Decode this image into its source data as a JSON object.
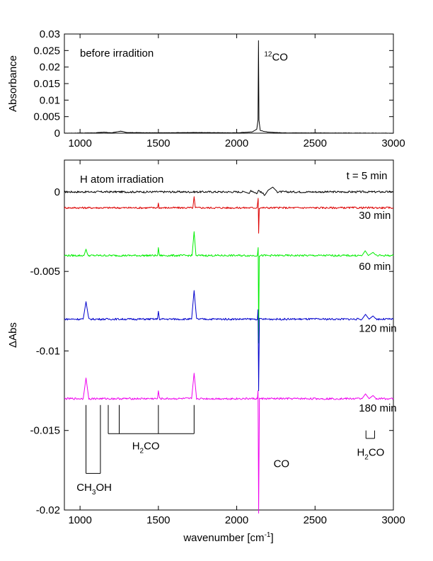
{
  "colors": {
    "axis": "#000000",
    "trace_before": "#000000",
    "trace_5": "#000000",
    "trace_30": "#dd0000",
    "trace_60": "#00ee00",
    "trace_120": "#0000cc",
    "trace_180": "#ee00ee"
  },
  "chart_data": [
    {
      "type": "line",
      "title": "",
      "xlabel": "",
      "ylabel": "Absorbance",
      "xlim": [
        900,
        3000
      ],
      "ylim": [
        0,
        0.03
      ],
      "x_ticks": [
        1000,
        1500,
        2000,
        2500,
        3000
      ],
      "x_tick_labels": [
        "1000",
        "1500",
        "2000",
        "2500",
        "3000"
      ],
      "y_ticks": [
        0,
        0.005,
        0.01,
        0.015,
        0.02,
        0.025,
        0.03
      ],
      "y_tick_labels": [
        "0",
        "0.005",
        "0.01",
        "0.015",
        "0.02",
        "0.025",
        "0.03"
      ],
      "annotation": "before irradition",
      "series": [
        {
          "baseline": 0,
          "points": [
            [
              900,
              0.0
            ],
            [
              1100,
              0.0001
            ],
            [
              1150,
              0.0003
            ],
            [
              1200,
              0.0001
            ],
            [
              1260,
              0.0006
            ],
            [
              1300,
              0.0002
            ],
            [
              1500,
              0.0001
            ],
            [
              1730,
              0.0002
            ],
            [
              2000,
              0.0001
            ],
            [
              2100,
              0.0004
            ],
            [
              2128,
              0.0012
            ],
            [
              2136,
              0.004
            ],
            [
              2139,
              0.028
            ],
            [
              2142,
              0.004
            ],
            [
              2150,
              0.0008
            ],
            [
              2200,
              0.0003
            ],
            [
              2300,
              0.0001
            ],
            [
              3000,
              0.0
            ]
          ]
        }
      ],
      "peak_label": {
        "sup": "12",
        "text": "CO",
        "x": 2139,
        "y": 0.028
      }
    },
    {
      "type": "line",
      "title": "",
      "xlabel": "wavenumber [cm",
      "xlabel_sup": "-1",
      "xlabel_suffix": "]",
      "ylabel": "ΔAbs",
      "xlim": [
        900,
        3000
      ],
      "ylim": [
        -0.02,
        0.002
      ],
      "x_ticks": [
        1000,
        1500,
        2000,
        2500,
        3000
      ],
      "x_tick_labels": [
        "1000",
        "1500",
        "2000",
        "2500",
        "3000"
      ],
      "y_ticks": [
        0,
        -0.005,
        -0.01,
        -0.015,
        -0.02
      ],
      "y_tick_labels": [
        "0",
        "-0.005",
        "-0.01",
        "-0.015",
        "-0.02"
      ],
      "annotation": "H atom irradiation",
      "series": [
        {
          "name": "t = 5 min",
          "baseline": 0.0,
          "points": [
            [
              900,
              0.0
            ],
            [
              2050,
              0.0
            ],
            [
              2080,
              -0.0001
            ],
            [
              2090,
              0.0001
            ],
            [
              2130,
              -0.0001
            ],
            [
              2139,
              0.0001
            ],
            [
              2180,
              -0.0002
            ],
            [
              2200,
              0.0001
            ],
            [
              2230,
              0.0003
            ],
            [
              2260,
              0.0
            ],
            [
              3000,
              0.0
            ]
          ]
        },
        {
          "name": "30 min",
          "baseline": -0.001,
          "points": [
            [
              900,
              -0.001
            ],
            [
              1495,
              -0.001
            ],
            [
              1500,
              -0.0007
            ],
            [
              1505,
              -0.001
            ],
            [
              1720,
              -0.001
            ],
            [
              1728,
              -0.0003
            ],
            [
              1736,
              -0.001
            ],
            [
              2130,
              -0.001
            ],
            [
              2137,
              -0.0004
            ],
            [
              2140,
              -0.0026
            ],
            [
              2144,
              -0.001
            ],
            [
              3000,
              -0.001
            ]
          ]
        },
        {
          "name": "60 min",
          "baseline": -0.004,
          "points": [
            [
              900,
              -0.004
            ],
            [
              1025,
              -0.004
            ],
            [
              1038,
              -0.0036
            ],
            [
              1050,
              -0.004
            ],
            [
              1495,
              -0.004
            ],
            [
              1500,
              -0.0035
            ],
            [
              1506,
              -0.004
            ],
            [
              1715,
              -0.004
            ],
            [
              1728,
              -0.0025
            ],
            [
              1740,
              -0.004
            ],
            [
              2132,
              -0.004
            ],
            [
              2137,
              -0.0035
            ],
            [
              2140,
              -0.0095
            ],
            [
              2144,
              -0.004
            ],
            [
              2800,
              -0.004
            ],
            [
              2820,
              -0.0037
            ],
            [
              2840,
              -0.004
            ],
            [
              2870,
              -0.0038
            ],
            [
              2890,
              -0.004
            ],
            [
              3000,
              -0.004
            ]
          ]
        },
        {
          "name": "120 min",
          "baseline": -0.008,
          "points": [
            [
              900,
              -0.008
            ],
            [
              1020,
              -0.008
            ],
            [
              1038,
              -0.0069
            ],
            [
              1056,
              -0.008
            ],
            [
              1494,
              -0.008
            ],
            [
              1500,
              -0.0075
            ],
            [
              1507,
              -0.008
            ],
            [
              1712,
              -0.008
            ],
            [
              1728,
              -0.0062
            ],
            [
              1744,
              -0.008
            ],
            [
              2132,
              -0.008
            ],
            [
              2136,
              -0.0074
            ],
            [
              2140,
              -0.0125
            ],
            [
              2145,
              -0.008
            ],
            [
              2800,
              -0.008
            ],
            [
              2822,
              -0.0077
            ],
            [
              2845,
              -0.008
            ],
            [
              2870,
              -0.0078
            ],
            [
              2890,
              -0.008
            ],
            [
              3000,
              -0.008
            ]
          ]
        },
        {
          "name": "180 min",
          "baseline": -0.013,
          "points": [
            [
              900,
              -0.013
            ],
            [
              1020,
              -0.013
            ],
            [
              1038,
              -0.0117
            ],
            [
              1056,
              -0.013
            ],
            [
              1494,
              -0.013
            ],
            [
              1500,
              -0.0125
            ],
            [
              1507,
              -0.013
            ],
            [
              1712,
              -0.013
            ],
            [
              1728,
              -0.0114
            ],
            [
              1744,
              -0.013
            ],
            [
              2132,
              -0.013
            ],
            [
              2136,
              -0.0125
            ],
            [
              2140,
              -0.0202
            ],
            [
              2145,
              -0.013
            ],
            [
              2800,
              -0.013
            ],
            [
              2822,
              -0.0127
            ],
            [
              2845,
              -0.013
            ],
            [
              2870,
              -0.0128
            ],
            [
              2890,
              -0.013
            ],
            [
              3000,
              -0.013
            ]
          ]
        }
      ],
      "annotations": {
        "ch3oh": {
          "pre": "CH",
          "sub1": "3",
          "post": "OH",
          "x_lines": [
            1038,
            1130
          ],
          "tick_top": -0.0134,
          "join_y": -0.0177,
          "label_x": 1090,
          "label_y": -0.0188
        },
        "h2co_mid": {
          "pre": "H",
          "sub": "2",
          "post": "CO",
          "x_lines": [
            1180,
            1250,
            1500,
            1728
          ],
          "tick_top": -0.0134,
          "join_y": -0.0152,
          "label_x": 1420,
          "label_y": -0.0162
        },
        "h2co_right": {
          "pre": "H",
          "sub": "2",
          "post": "CO",
          "x_lines": [
            2825,
            2880
          ],
          "tick_top": -0.015,
          "join_y": -0.0155,
          "label_x": 2855,
          "label_y": -0.0166
        },
        "co": {
          "text": "CO",
          "x": 2235,
          "y": -0.0173
        }
      },
      "series_labels": [
        {
          "text": "t = 5 min",
          "x": 2700,
          "y": 0.0008
        },
        {
          "text": "30 min",
          "x": 2780,
          "y": -0.0017
        },
        {
          "text": "60 min",
          "x": 2780,
          "y": -0.0049
        },
        {
          "text": "120 min",
          "x": 2780,
          "y": -0.0088
        },
        {
          "text": "180 min",
          "x": 2780,
          "y": -0.0138
        }
      ]
    }
  ]
}
